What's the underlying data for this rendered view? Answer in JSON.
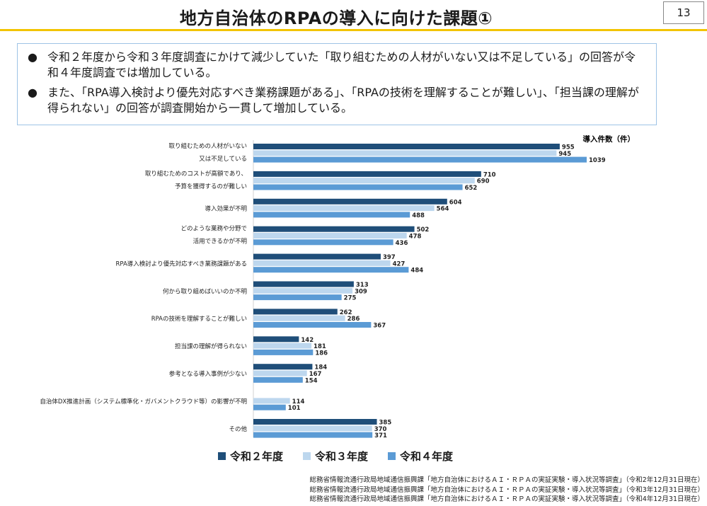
{
  "page": {
    "title": "地方自治体のRPAの導入に向けた課題①",
    "page_number": "13"
  },
  "summary": {
    "bullet_symbol": "●",
    "items": [
      "令和２年度から令和３年度調査にかけて減少していた「取り組むための人材がいない又は不足している」の回答が令和４年度調査では増加している。",
      "また、「RPA導入検討より優先対応すべき業務課題がある」、「RPAの技術を理解することが難しい」、「担当課の理解が得られない」の回答が調査開始から一貫して増加している。"
    ]
  },
  "chart_data": {
    "type": "bar",
    "orientation": "horizontal",
    "unit_label": "導入件数（件）",
    "categories": [
      [
        "取り組むための人材がいない",
        "又は不足している"
      ],
      [
        "取り組むためのコストが高額であり、",
        "予算を獲得するのが難しい"
      ],
      [
        "導入効果が不明"
      ],
      [
        "どのような業務や分野で",
        "活用できるかが不明"
      ],
      [
        "RPA導入検討より優先対応すべき業務課題がある"
      ],
      [
        "何から取り組めばいいのか不明"
      ],
      [
        "RPAの技術を理解することが難しい"
      ],
      [
        "担当課の理解が得られない"
      ],
      [
        "参考となる導入事例が少ない"
      ],
      [
        "自治体DX推進計画（システム標準化・ガバメントクラウド等）の影響が不明"
      ],
      [
        "その他"
      ]
    ],
    "series": [
      {
        "name": "令和２年度",
        "color": "#1f4e79",
        "values": [
          955,
          710,
          604,
          502,
          397,
          313,
          262,
          142,
          184,
          null,
          385
        ]
      },
      {
        "name": "令和３年度",
        "color": "#bdd7ee",
        "values": [
          945,
          690,
          564,
          478,
          427,
          309,
          286,
          181,
          167,
          114,
          370
        ]
      },
      {
        "name": "令和４年度",
        "color": "#5b9bd5",
        "values": [
          1039,
          652,
          488,
          436,
          484,
          275,
          367,
          186,
          154,
          101,
          371
        ]
      }
    ],
    "xlim": [
      0,
      1039
    ],
    "grid": false,
    "legend": "bottom"
  },
  "sources": [
    "総務省情報流通行政局地域通信振興課「地方自治体におけるＡＩ・ＲＰＡの実証実験・導入状況等調査」（令和2年12月31日現在）",
    "総務省情報流通行政局地域通信振興課「地方自治体におけるＡＩ・ＲＰＡの実証実験・導入状況等調査」（令和3年12月31日現在）",
    "総務省情報流通行政局地域通信振興課「地方自治体におけるＡＩ・ＲＰＡの実証実験・導入状況等調査」（令和4年12月31日現在）"
  ]
}
